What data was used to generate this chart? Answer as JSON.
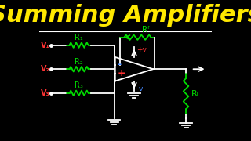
{
  "title": "Summing Amplifiers",
  "title_color": "#FFE800",
  "title_fontsize": 22,
  "bg_color": "#000000",
  "circuit_color": "#FFFFFF",
  "green_color": "#00DD00",
  "red_color": "#FF3333",
  "blue_color": "#4488FF",
  "figsize": [
    3.2,
    1.8
  ],
  "dpi": 100,
  "xlim": [
    0,
    10
  ],
  "ylim": [
    0,
    10
  ]
}
